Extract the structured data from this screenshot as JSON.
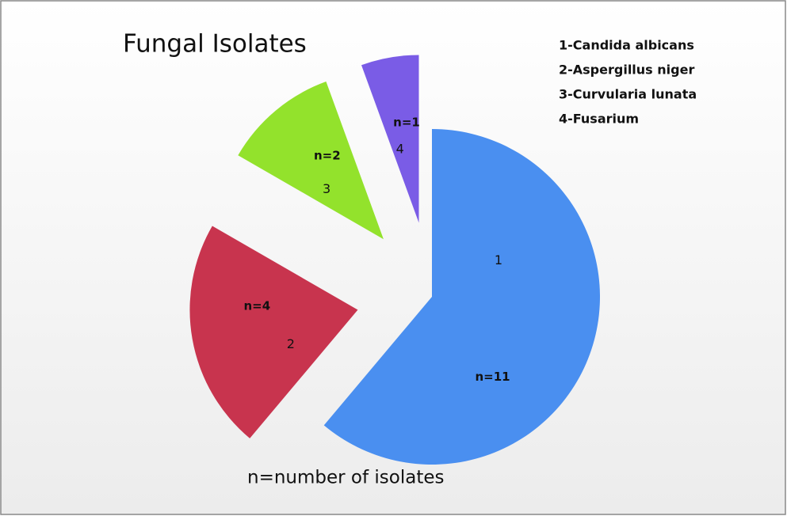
{
  "chart_data": {
    "type": "pie",
    "title": "Fungal Isolates",
    "categories": [
      "1",
      "2",
      "3",
      "4"
    ],
    "values": [
      11,
      4,
      2,
      1
    ],
    "value_labels": [
      "n=11",
      "n=4",
      "n=2",
      "n=1"
    ],
    "colors": [
      "#4a8ff0",
      "#c8344e",
      "#93e22c",
      "#7a5ce6"
    ],
    "legend": [
      "1-Candida albicans",
      "2-Aspergillus niger",
      "3-Curvularia lunata",
      "4-Fusarium"
    ],
    "legend_position": "upper right",
    "note": "n=number of isolates"
  }
}
